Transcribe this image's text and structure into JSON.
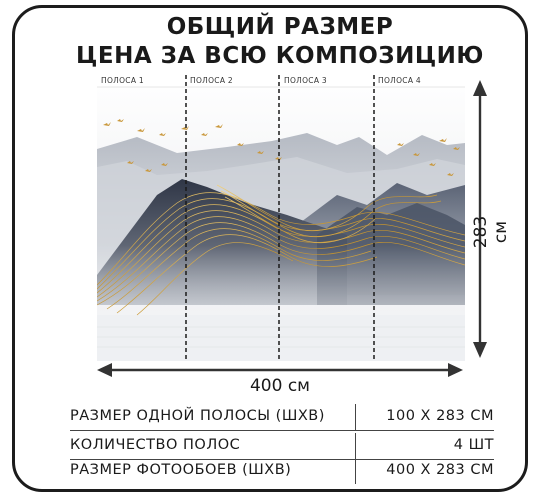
{
  "title_line1": "ОБЩИЙ РАЗМЕР",
  "title_line2": "ЦЕНА ЗА ВСЮ КОМПОЗИЦИЮ",
  "strips": [
    "ПОЛОСА 1",
    "ПОЛОСА 2",
    "ПОЛОСА 3",
    "ПОЛОСА 4"
  ],
  "width_label": "400 см",
  "height_label": "283 см",
  "specs": [
    {
      "label": "РАЗМЕР ОДНОЙ ПОЛОСЫ (ШХВ)",
      "value": "100 Х 283 СМ"
    },
    {
      "label": "КОЛИЧЕСТВО ПОЛОС",
      "value": "4 ШТ"
    },
    {
      "label": "РАЗМЕР ФОТООБОЕВ (ШХВ)",
      "value": "400 Х 283 СМ"
    }
  ],
  "colors": {
    "gold": "#d4a437",
    "mountain_dark": "#3e4656",
    "mountain_light": "#b8bdc6",
    "frame": "#1c1c1c"
  }
}
